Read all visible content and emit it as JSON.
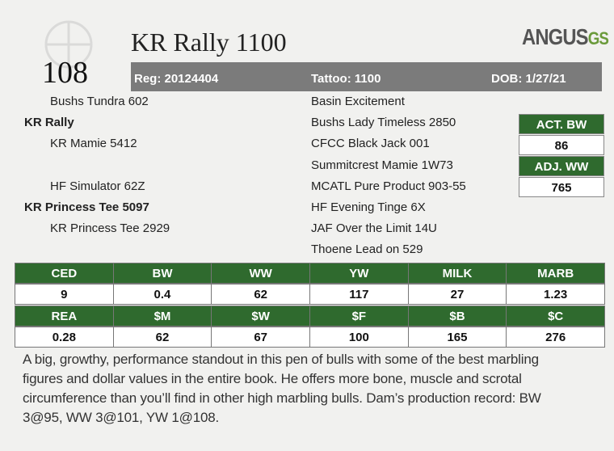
{
  "lot": "108",
  "title": "KR Rally 1100",
  "logo": {
    "main": "ANGUS",
    "accent": "GS"
  },
  "info": {
    "reg": "Reg: 20124404",
    "tattoo": "Tattoo: 1100",
    "dob": "DOB: 1/27/21"
  },
  "pedigree": {
    "left": [
      {
        "row": 0,
        "text": "Bushs Tundra 602",
        "bold": false
      },
      {
        "row": 1,
        "text": "KR Rally",
        "bold": true
      },
      {
        "row": 2,
        "text": "KR Mamie 5412",
        "bold": false
      },
      {
        "row": 4,
        "text": "HF Simulator 62Z",
        "bold": false
      },
      {
        "row": 5,
        "text": "KR Princess Tee 5097",
        "bold": true
      },
      {
        "row": 6,
        "text": "KR Princess Tee 2929",
        "bold": false
      }
    ],
    "right": [
      "Basin Excitement",
      "Bushs Lady Timeless 2850",
      "CFCC Black Jack 001",
      "Summitcrest Mamie 1W73",
      "MCATL Pure Product 903-55",
      "HF Evening Tinge 6X",
      "JAF Over the Limit 14U",
      "Thoene Lead on 529"
    ]
  },
  "weights": [
    {
      "label": "ACT. BW",
      "value": "86"
    },
    {
      "label": "ADJ. WW",
      "value": "765"
    }
  ],
  "epd": {
    "rows": [
      {
        "headers": [
          "CED",
          "BW",
          "WW",
          "YW",
          "MILK",
          "MARB"
        ],
        "values": [
          "9",
          "0.4",
          "62",
          "117",
          "27",
          "1.23"
        ]
      },
      {
        "headers": [
          "REA",
          "$M",
          "$W",
          "$F",
          "$B",
          "$C"
        ],
        "values": [
          "0.28",
          "62",
          "67",
          "100",
          "165",
          "276"
        ]
      }
    ]
  },
  "description": [
    "A big, growthy, performance standout in this pen of bulls with some of the best marbling",
    "figures and dollar values in the entire book. He offers more bone, muscle and scrotal",
    "circumference than you’ll find in other high marbling bulls. Dam’s production record: BW",
    "3@95, WW 3@101, YW 1@108."
  ]
}
